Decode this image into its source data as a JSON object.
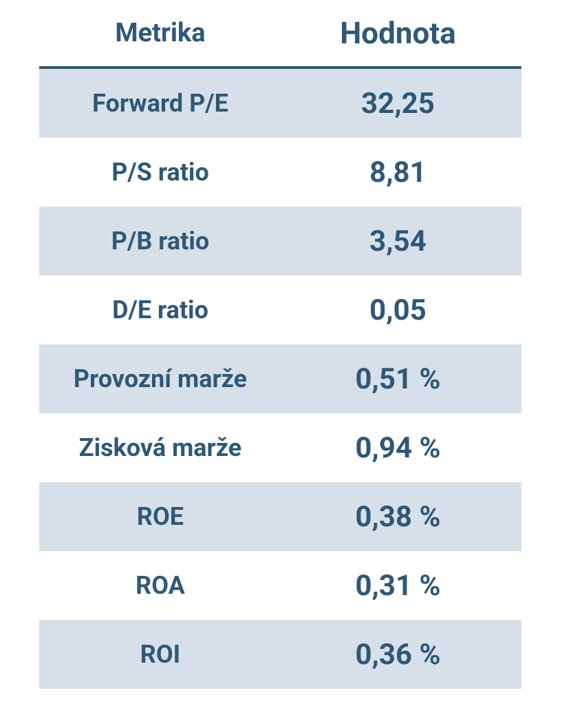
{
  "table": {
    "header": [
      "Metrika",
      "Hodnota"
    ],
    "rows": [
      [
        "Forward P/E",
        "32,25"
      ],
      [
        "P/S ratio",
        "8,81"
      ],
      [
        "P/B ratio",
        "3,54"
      ],
      [
        "D/E ratio",
        "0,05"
      ],
      [
        "Provozní marže",
        "0,51 %"
      ],
      [
        "Zisková marže",
        "0,94 %"
      ],
      [
        "ROE",
        "0,38 %"
      ],
      [
        "ROA",
        "0,31 %"
      ],
      [
        "ROI",
        "0,36 %"
      ]
    ]
  }
}
